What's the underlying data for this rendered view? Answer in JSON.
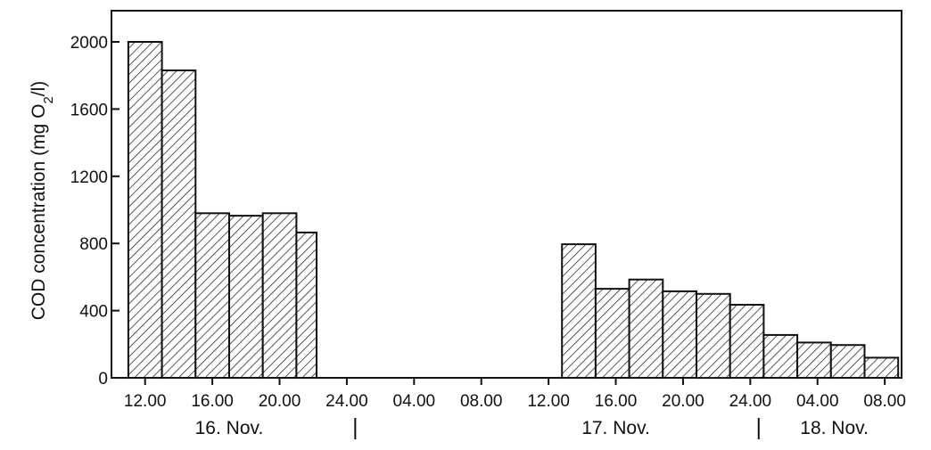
{
  "chart_data": {
    "type": "bar",
    "ylabel": "COD concentration (mg O2/l)",
    "ylabel_parts": {
      "pre": "COD concentration (mg O",
      "sub": "2",
      "post": "/l)"
    },
    "x_tick_labels": [
      "12.00",
      "16.00",
      "20.00",
      "24.00",
      "04.00",
      "08.00",
      "12.00",
      "16.00",
      "20.00",
      "24.00",
      "04.00",
      "08.00"
    ],
    "x_tick_hours": [
      12,
      16,
      20,
      24,
      28,
      32,
      36,
      40,
      44,
      48,
      52,
      56
    ],
    "x_range_hours": [
      10,
      57
    ],
    "date_labels": [
      {
        "text": "16. Nov.",
        "hour": 17
      },
      {
        "text": "17. Nov.",
        "hour": 40
      },
      {
        "text": "18. Nov.",
        "hour": 53
      }
    ],
    "date_separators_hours": [
      24.5,
      48.5
    ],
    "ylim": [
      0,
      2200
    ],
    "y_ticks": [
      0,
      400,
      800,
      1200,
      1600,
      2000
    ],
    "bars": [
      {
        "start": 11.0,
        "end": 13.0,
        "value": 2000
      },
      {
        "start": 13.0,
        "end": 15.0,
        "value": 1830
      },
      {
        "start": 15.0,
        "end": 17.0,
        "value": 980
      },
      {
        "start": 17.0,
        "end": 19.0,
        "value": 965
      },
      {
        "start": 19.0,
        "end": 21.0,
        "value": 980
      },
      {
        "start": 21.0,
        "end": 22.2,
        "value": 865
      },
      {
        "start": 36.8,
        "end": 38.8,
        "value": 795
      },
      {
        "start": 38.8,
        "end": 40.8,
        "value": 530
      },
      {
        "start": 40.8,
        "end": 42.8,
        "value": 585
      },
      {
        "start": 42.8,
        "end": 44.8,
        "value": 515
      },
      {
        "start": 44.8,
        "end": 46.8,
        "value": 500
      },
      {
        "start": 46.8,
        "end": 48.8,
        "value": 435
      },
      {
        "start": 48.8,
        "end": 50.8,
        "value": 255
      },
      {
        "start": 50.8,
        "end": 52.8,
        "value": 210
      },
      {
        "start": 52.8,
        "end": 54.8,
        "value": 195
      },
      {
        "start": 54.8,
        "end": 56.8,
        "value": 120
      }
    ],
    "grid": false,
    "legend": "none",
    "bar_fill": "hatched",
    "colors": {
      "ink": "#111111",
      "background": "#ffffff"
    }
  }
}
